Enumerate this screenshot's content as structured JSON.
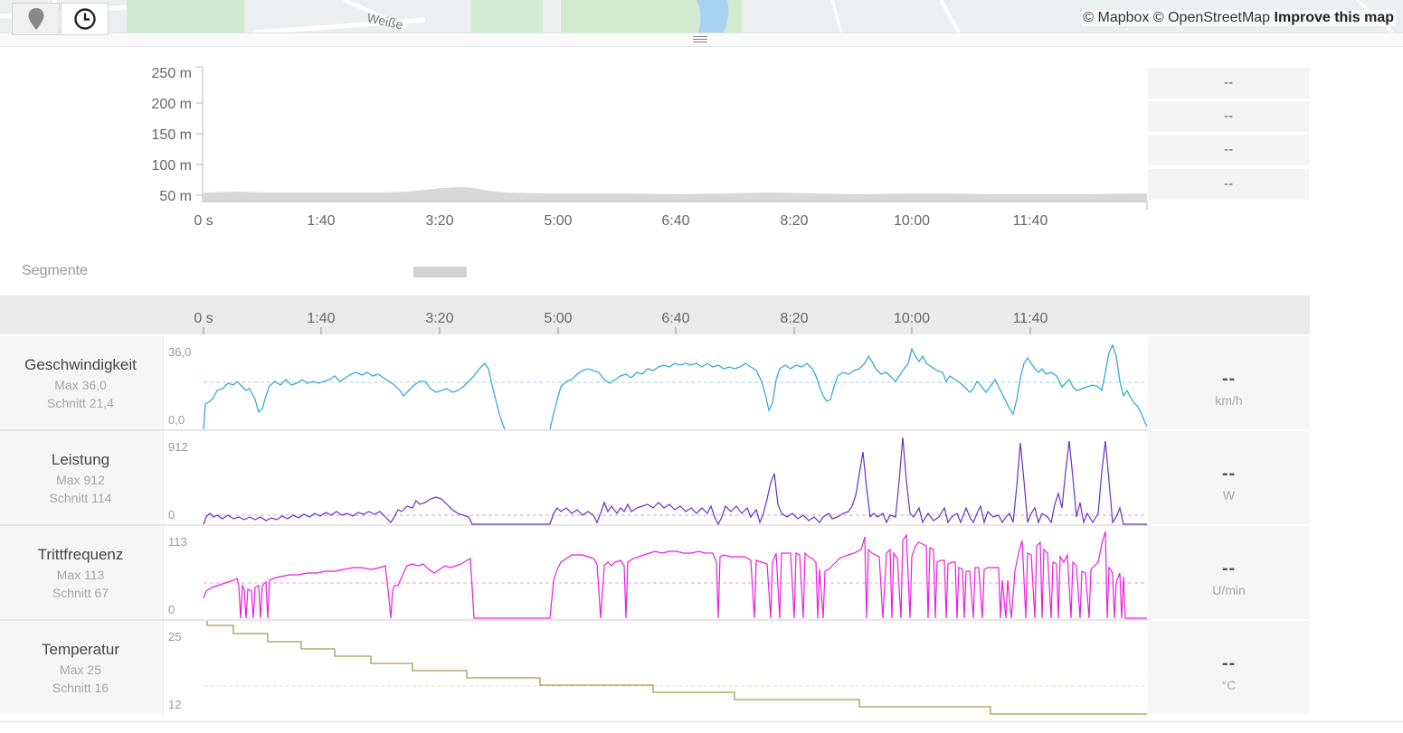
{
  "map": {
    "attribution_mapbox": "© Mapbox",
    "attribution_osm": "© OpenStreetMap",
    "improve_link": "Improve this map",
    "street_label": "Weiße"
  },
  "elevation": {
    "y_ticks": [
      "250 m",
      "200 m",
      "150 m",
      "100 m",
      "50 m"
    ],
    "x_ticks": [
      "0 s",
      "1:40",
      "3:20",
      "5:00",
      "6:40",
      "8:20",
      "10:00",
      "11:40"
    ]
  },
  "stats": [
    "--",
    "--",
    "--",
    "--"
  ],
  "segments": {
    "label": "Segmente"
  },
  "time_axis": {
    "ticks": [
      "0 s",
      "1:40",
      "3:20",
      "5:00",
      "6:40",
      "8:20",
      "10:00",
      "11:40"
    ],
    "location_icon": "location-pin-icon",
    "time_icon": "clock-icon"
  },
  "metrics": [
    {
      "name": "Geschwindigkeit",
      "max": "Max 36,0",
      "avg": "Schnitt 21,4",
      "ymax": "36,0",
      "ymin": "0,0",
      "value": "--",
      "unit": "km/h",
      "color": "#3aa9d4"
    },
    {
      "name": "Leistung",
      "max": "Max 912",
      "avg": "Schnitt 114",
      "ymax": "912",
      "ymin": "0",
      "value": "--",
      "unit": "W",
      "color": "#6433c4"
    },
    {
      "name": "Trittfrequenz",
      "max": "Max 113",
      "avg": "Schnitt 67",
      "ymax": "113",
      "ymin": "0",
      "value": "--",
      "unit": "U/min",
      "color": "#e81fe0"
    },
    {
      "name": "Temperatur",
      "max": "Max 25",
      "avg": "Schnitt 16",
      "ymax": "25",
      "ymin": "12",
      "value": "--",
      "unit": "°C",
      "color": "#a99a4e"
    }
  ]
}
